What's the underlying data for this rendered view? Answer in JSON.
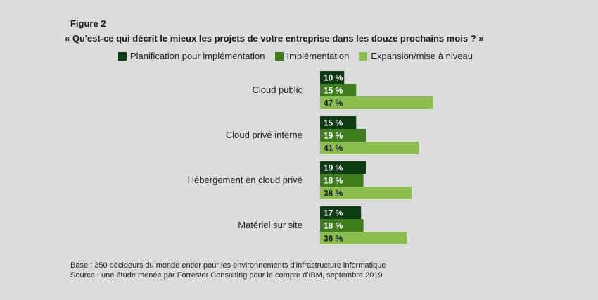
{
  "figure_label": "Figure 2",
  "question": "« Qu'est-ce qui décrit le mieux les projets de votre entreprise dans les douze prochains mois ? »",
  "chart_data": {
    "type": "bar",
    "orientation": "horizontal",
    "categories": [
      "Cloud public",
      "Cloud privé interne",
      "Hébergement en cloud privé",
      "Matériel sur site"
    ],
    "series": [
      {
        "name": "Planification pour implémentation",
        "values": [
          10,
          15,
          19,
          17
        ],
        "color": "#0d3b12"
      },
      {
        "name": "Implémentation",
        "values": [
          15,
          19,
          18,
          18
        ],
        "color": "#3f7d1e"
      },
      {
        "name": "Expansion/mise à niveau",
        "values": [
          47,
          41,
          38,
          36
        ],
        "color": "#8bbd50"
      }
    ],
    "value_suffix": " %",
    "xlim": [
      0,
      50
    ],
    "grid": false,
    "legend_position": "top"
  },
  "footnotes": [
    "Base : 350 décideurs du monde entier pour les environnements d'infrastructure informatique",
    "Source : une étude menée par Forrester Consulting pour le compte d'IBM, septembre 2019"
  ]
}
